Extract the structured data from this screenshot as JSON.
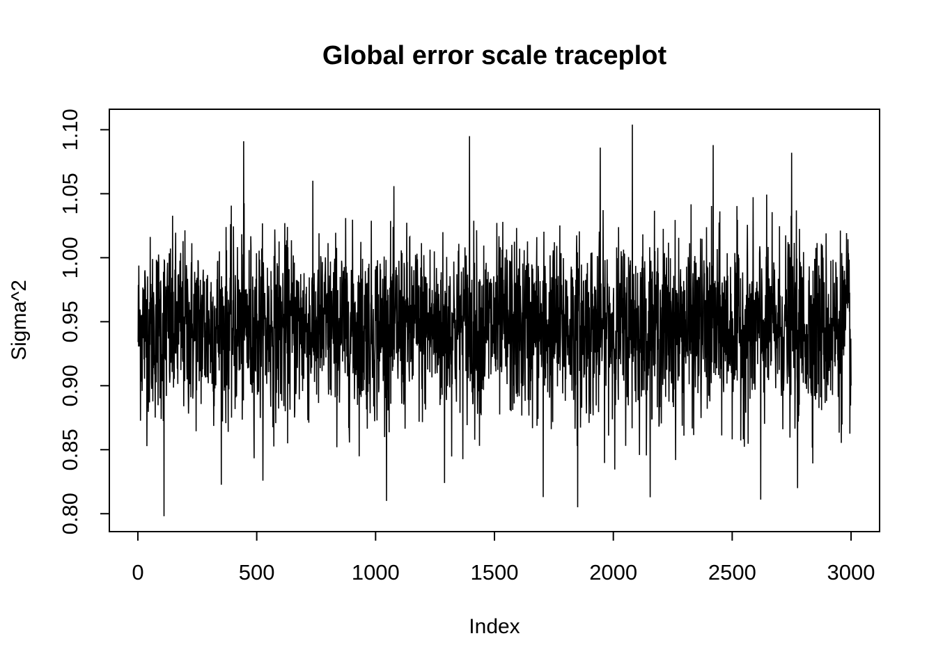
{
  "chart_data": {
    "type": "line",
    "title": "Global error scale traceplot",
    "xlabel": "Index",
    "ylabel": "Sigma^2",
    "xlim": [
      -120,
      3120
    ],
    "ylim": [
      0.786,
      1.116
    ],
    "x_ticks": [
      0,
      500,
      1000,
      1500,
      2000,
      2500,
      3000
    ],
    "x_tick_labels": [
      "0",
      "500",
      "1000",
      "1500",
      "2000",
      "2500",
      "3000"
    ],
    "y_ticks": [
      0.8,
      0.85,
      0.9,
      0.95,
      1.0,
      1.05,
      1.1
    ],
    "y_tick_labels": [
      "0.80",
      "0.85",
      "0.90",
      "0.95",
      "1.00",
      "1.05",
      "1.10"
    ],
    "grid": false,
    "line_color": "#000000",
    "series": [
      {
        "n": 3000,
        "mean": 0.945,
        "sd": 0.037,
        "min": 0.798,
        "max": 1.104,
        "notable_points": [
          {
            "x": 110,
            "y": 0.798
          },
          {
            "x": 445,
            "y": 1.091
          },
          {
            "x": 1395,
            "y": 1.095
          },
          {
            "x": 1290,
            "y": 0.824
          },
          {
            "x": 1705,
            "y": 0.813
          },
          {
            "x": 1850,
            "y": 0.805
          },
          {
            "x": 1945,
            "y": 1.086
          },
          {
            "x": 2080,
            "y": 1.104
          },
          {
            "x": 2420,
            "y": 1.088
          },
          {
            "x": 2620,
            "y": 0.811
          },
          {
            "x": 2750,
            "y": 1.082
          },
          {
            "x": 2775,
            "y": 0.82
          },
          {
            "x": 3000,
            "y": 0.9
          }
        ]
      }
    ]
  }
}
